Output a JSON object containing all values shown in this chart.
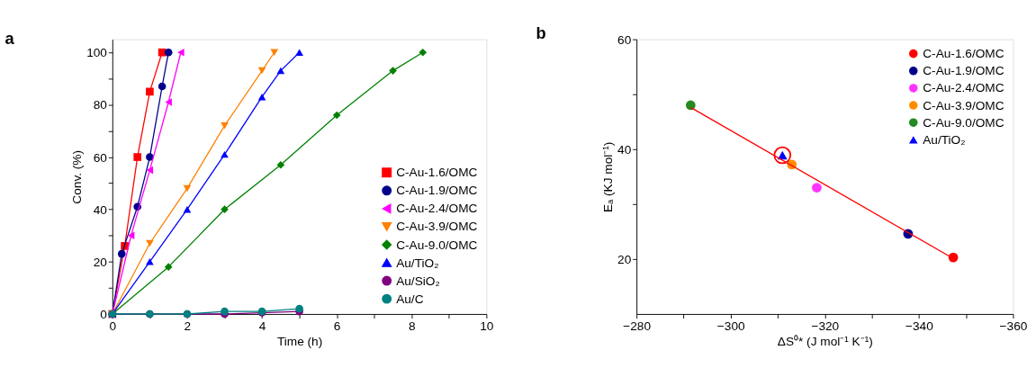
{
  "chart_data": [
    {
      "type": "line",
      "title": "a",
      "xlabel": "Time (h)",
      "ylabel": "Conv. (%)",
      "xlim": [
        0,
        10
      ],
      "ylim": [
        0,
        105
      ],
      "xticks": [
        0,
        {
          "value": 1,
          "label": null
        },
        2,
        {
          "value": 3,
          "label": null
        },
        4,
        {
          "value": 5,
          "label": null
        },
        6,
        {
          "value": 7,
          "label": null
        },
        8,
        {
          "value": 9,
          "label": null
        },
        10
      ],
      "yticks": [
        0,
        {
          "value": 10,
          "label": null
        },
        20,
        {
          "value": 30,
          "label": null
        },
        40,
        {
          "value": 50,
          "label": null
        },
        60,
        {
          "value": 70,
          "label": null
        },
        80,
        {
          "value": 90,
          "label": null
        },
        100
      ],
      "grid": false,
      "legend": "bottom right",
      "series": [
        {
          "name": "C-Au-1.6/OMC",
          "color": "#ff0000",
          "marker": "square",
          "x": [
            0,
            0.33,
            0.67,
            1,
            1.33
          ],
          "values": [
            0,
            26,
            60,
            85,
            100
          ]
        },
        {
          "name": "C-Au-1.9/OMC",
          "color": "#00008b",
          "marker": "circle",
          "x": [
            0,
            0.25,
            0.67,
            1,
            1.33,
            1.5
          ],
          "values": [
            0,
            23,
            41,
            60,
            87,
            100
          ]
        },
        {
          "name": "C-Au-2.4/OMC",
          "color": "#ff00ff",
          "marker": "triangle-left",
          "x": [
            0,
            0.5,
            1,
            1.5,
            1.83
          ],
          "values": [
            0,
            30,
            55,
            81,
            100
          ]
        },
        {
          "name": "C-Au-3.9/OMC",
          "color": "#ff8000",
          "marker": "triangle-down",
          "x": [
            0,
            1,
            2,
            3,
            4,
            4.33
          ],
          "values": [
            0,
            27,
            48,
            72,
            93,
            100
          ]
        },
        {
          "name": "C-Au-9.0/OMC",
          "color": "#008000",
          "marker": "diamond",
          "x": [
            0,
            1.5,
            3,
            4.5,
            6,
            7.5,
            8.3
          ],
          "values": [
            0,
            18,
            40,
            57,
            76,
            93,
            100
          ]
        },
        {
          "name": "Au/TiO₂",
          "color": "#0000ff",
          "marker": "triangle",
          "x": [
            0,
            1,
            2,
            3,
            4,
            4.5,
            5
          ],
          "values": [
            0,
            20,
            40,
            61,
            83,
            93,
            100
          ]
        },
        {
          "name": "Au/SiO₂",
          "color": "#800080",
          "marker": "circle",
          "x": [
            0,
            1,
            2,
            3,
            4,
            5
          ],
          "values": [
            0,
            0,
            0,
            0,
            0.5,
            1
          ]
        },
        {
          "name": "Au/C",
          "color": "#008080",
          "marker": "circle",
          "x": [
            0,
            1,
            2,
            3,
            4,
            5
          ],
          "values": [
            0,
            0,
            0,
            1,
            1,
            2
          ]
        }
      ]
    },
    {
      "type": "scatter",
      "title": "b",
      "xlabel": "ΔS⁰* (J mol⁻¹ K⁻¹)",
      "ylabel": "Eₐ (KJ mol⁻¹)",
      "xlim": [
        -280,
        -360
      ],
      "ylim": [
        10,
        60
      ],
      "xticks": [
        -280,
        {
          "value": -290,
          "label": null
        },
        -300,
        {
          "value": -310,
          "label": null
        },
        -320,
        {
          "value": -330,
          "label": null
        },
        -340,
        {
          "value": -350,
          "label": null
        },
        -360
      ],
      "yticks": [
        20,
        {
          "value": 30,
          "label": null
        },
        40,
        {
          "value": 50,
          "label": null
        },
        60
      ],
      "grid": false,
      "legend": "top right",
      "series": [
        {
          "name": "C-Au-1.6/OMC",
          "color": "#ff0000",
          "marker": "circle",
          "x": [
            -347.3
          ],
          "values": [
            20.3
          ]
        },
        {
          "name": "C-Au-1.9/OMC",
          "color": "#00008b",
          "marker": "circle",
          "x": [
            -337.7
          ],
          "values": [
            24.6
          ]
        },
        {
          "name": "C-Au-2.4/OMC",
          "color": "#ff33ff",
          "marker": "circle",
          "x": [
            -318.3
          ],
          "values": [
            33
          ]
        },
        {
          "name": "C-Au-3.9/OMC",
          "color": "#ff8c00",
          "marker": "circle",
          "x": [
            -313
          ],
          "values": [
            37.2
          ]
        },
        {
          "name": "C-Au-9.0/OMC",
          "color": "#228b22",
          "marker": "circle",
          "x": [
            -291.5
          ],
          "values": [
            48
          ]
        },
        {
          "name": "Au/TiO₂",
          "color": "#0000ff",
          "marker": "triangle",
          "x": [
            -311
          ],
          "values": [
            38.9
          ]
        },
        {
          "type": "line",
          "color": "#ff0000",
          "marker": "none",
          "x": [
            -291.5,
            -347.3
          ],
          "values": [
            47.6,
            20.1
          ]
        }
      ]
    }
  ]
}
